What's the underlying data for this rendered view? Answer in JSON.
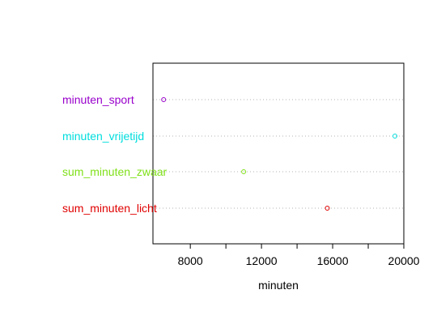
{
  "chart_data": {
    "type": "dotchart",
    "xlabel": "minuten",
    "ylabel": "",
    "title": "",
    "xlim": [
      5900,
      20000
    ],
    "x_ticks": [
      8000,
      10000,
      12000,
      14000,
      16000,
      18000,
      20000
    ],
    "x_tick_labels": [
      "8000",
      "",
      "12000",
      "",
      "16000",
      "",
      "20000"
    ],
    "grid": "dotted horizontal guide lines",
    "categories": [
      "minuten_sport",
      "minuten_vrijetijd",
      "sum_minuten_zwaar",
      "sum_minuten_licht"
    ],
    "values": [
      6500,
      19500,
      11000,
      15700
    ],
    "colors": [
      "#9900cc",
      "#00dddd",
      "#80e01a",
      "#e00000"
    ],
    "marker": "open-circle"
  }
}
